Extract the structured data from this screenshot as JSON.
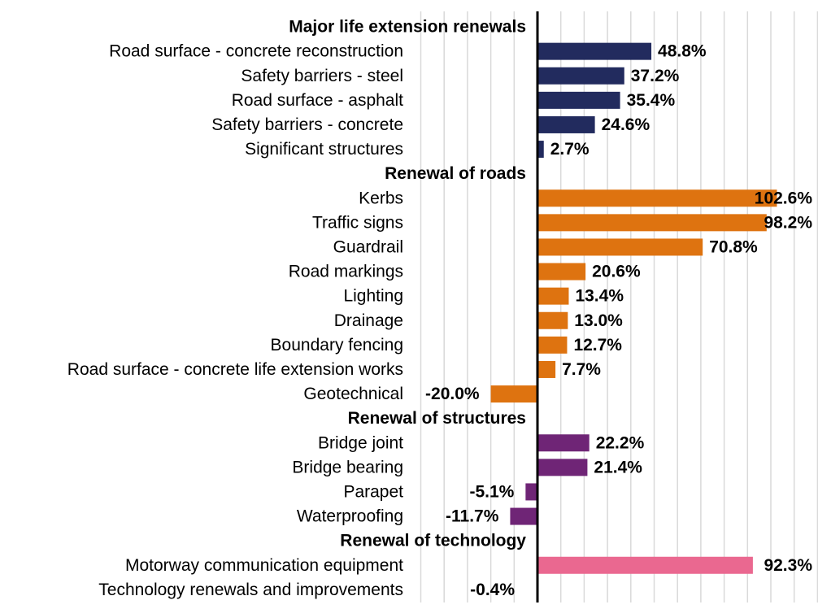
{
  "chart_data": {
    "type": "bar",
    "orientation": "horizontal",
    "xlim": [
      -50,
      120
    ],
    "grid": true,
    "value_suffix": "%",
    "groups": [
      {
        "name": "Major life extension renewals",
        "color": "#222B5E",
        "items": [
          {
            "label": "Road surface - concrete reconstruction",
            "value": 48.8,
            "value_label": "48.8%"
          },
          {
            "label": "Safety barriers - steel",
            "value": 37.2,
            "value_label": "37.2%"
          },
          {
            "label": "Road surface - asphalt",
            "value": 35.4,
            "value_label": "35.4%"
          },
          {
            "label": "Safety barriers - concrete",
            "value": 24.6,
            "value_label": "24.6%"
          },
          {
            "label": "Significant structures",
            "value": 2.7,
            "value_label": "2.7%"
          }
        ]
      },
      {
        "name": "Renewal of roads",
        "color": "#DE7310",
        "items": [
          {
            "label": "Kerbs",
            "value": 102.6,
            "value_label": "102.6%"
          },
          {
            "label": "Traffic signs",
            "value": 98.2,
            "value_label": "98.2%"
          },
          {
            "label": "Guardrail",
            "value": 70.8,
            "value_label": "70.8%"
          },
          {
            "label": "Road markings",
            "value": 20.6,
            "value_label": "20.6%"
          },
          {
            "label": "Lighting",
            "value": 13.4,
            "value_label": "13.4%"
          },
          {
            "label": "Drainage",
            "value": 13.0,
            "value_label": "13.0%"
          },
          {
            "label": "Boundary fencing",
            "value": 12.7,
            "value_label": "12.7%"
          },
          {
            "label": "Road surface - concrete life extension works",
            "value": 7.7,
            "value_label": "7.7%"
          },
          {
            "label": "Geotechnical",
            "value": -20.0,
            "value_label": "-20.0%"
          }
        ]
      },
      {
        "name": "Renewal of structures",
        "color": "#6F2576",
        "items": [
          {
            "label": "Bridge joint",
            "value": 22.2,
            "value_label": "22.2%"
          },
          {
            "label": "Bridge bearing",
            "value": 21.4,
            "value_label": "21.4%"
          },
          {
            "label": "Parapet",
            "value": -5.1,
            "value_label": "-5.1%"
          },
          {
            "label": "Waterproofing",
            "value": -11.7,
            "value_label": "-11.7%"
          }
        ]
      },
      {
        "name": "Renewal of technology",
        "color": "#EA6890",
        "items": [
          {
            "label": "Motorway communication equipment",
            "value": 92.3,
            "value_label": "92.3%"
          },
          {
            "label": "Technology renewals and improvements",
            "value": -0.4,
            "value_label": "-0.4%"
          }
        ]
      }
    ]
  }
}
